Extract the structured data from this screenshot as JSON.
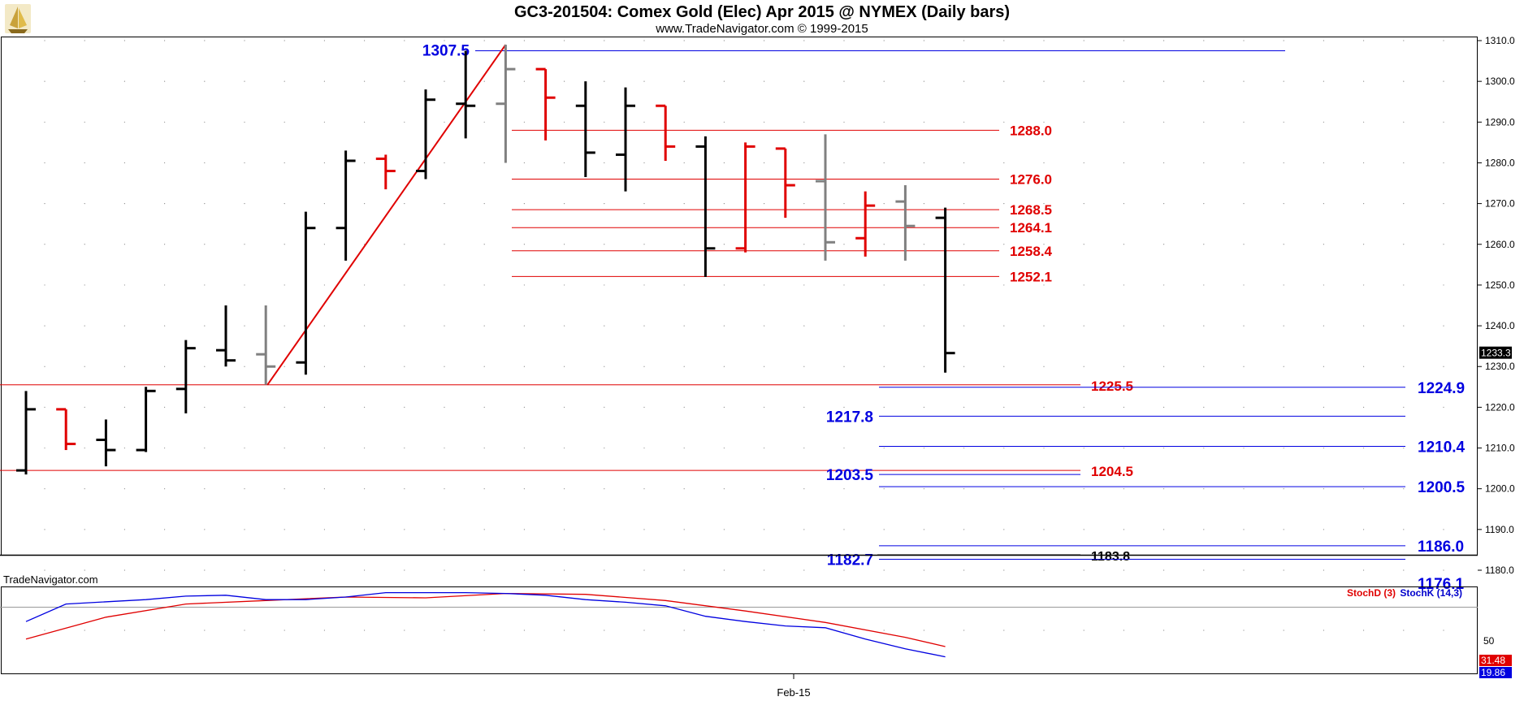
{
  "header": {
    "title": "GC3-201504:  Comex Gold (Elec) Apr 2015 @ NYMEX  (Daily bars)",
    "subtitle": "www.TradeNavigator.com © 1999-2015",
    "watermark": "TradeNavigator.com",
    "logo_icon": "sailing-ship-icon"
  },
  "colors": {
    "up": "#000000",
    "down": "#e00000",
    "neutral": "#808080",
    "fib_red": "#e00000",
    "fib_blue": "#0000e0",
    "stoch_d": "#e00000",
    "stoch_k": "#0000e0"
  },
  "chart_data": [
    {
      "type": "ohlc",
      "title": "GC3-201504:  Comex Gold (Elec) Apr 2015 @ NYMEX  (Daily bars)",
      "ylim": [
        1176,
        1311
      ],
      "y_ticks": [
        "1310.0",
        "1300.0",
        "1290.0",
        "1280.0",
        "1270.0",
        "1260.0",
        "1250.0",
        "1240.0",
        "1230.0",
        "1220.0",
        "1210.0",
        "1200.0",
        "1190.0",
        "1180.0"
      ],
      "x_ticks": [
        "Feb-15"
      ],
      "last_price_tag": "1233.3",
      "bars": [
        {
          "o": 1204.5,
          "h": 1224,
          "l": 1203.5,
          "c": 1219.5,
          "color": "up"
        },
        {
          "o": 1219.5,
          "h": 1219.5,
          "l": 1209.5,
          "c": 1211,
          "color": "down"
        },
        {
          "o": 1212,
          "h": 1217,
          "l": 1205.5,
          "c": 1209.5,
          "color": "up"
        },
        {
          "o": 1209.5,
          "h": 1225,
          "l": 1209,
          "c": 1224,
          "color": "up"
        },
        {
          "o": 1224.5,
          "h": 1236.5,
          "l": 1218.5,
          "c": 1234.5,
          "color": "up"
        },
        {
          "o": 1234,
          "h": 1245,
          "l": 1230,
          "c": 1231.5,
          "color": "up"
        },
        {
          "o": 1233,
          "h": 1245,
          "l": 1225.5,
          "c": 1230,
          "color": "neutral"
        },
        {
          "o": 1231,
          "h": 1268,
          "l": 1228,
          "c": 1264,
          "color": "up"
        },
        {
          "o": 1264,
          "h": 1283,
          "l": 1256,
          "c": 1280.5,
          "color": "up"
        },
        {
          "o": 1281,
          "h": 1282,
          "l": 1273.5,
          "c": 1278,
          "color": "down"
        },
        {
          "o": 1278,
          "h": 1298,
          "l": 1276,
          "c": 1295.5,
          "color": "up"
        },
        {
          "o": 1294.5,
          "h": 1307.5,
          "l": 1286,
          "c": 1294,
          "color": "up"
        },
        {
          "o": 1294.5,
          "h": 1309,
          "l": 1280,
          "c": 1303,
          "color": "neutral"
        },
        {
          "o": 1303,
          "h": 1303,
          "l": 1285.5,
          "c": 1296,
          "color": "down"
        },
        {
          "o": 1294,
          "h": 1300,
          "l": 1276.5,
          "c": 1282.5,
          "color": "up"
        },
        {
          "o": 1282,
          "h": 1298.5,
          "l": 1273,
          "c": 1294,
          "color": "up"
        },
        {
          "o": 1294,
          "h": 1294,
          "l": 1280.5,
          "c": 1284,
          "color": "down"
        },
        {
          "o": 1284,
          "h": 1286.5,
          "l": 1252,
          "c": 1259,
          "color": "up"
        },
        {
          "o": 1259,
          "h": 1285,
          "l": 1258,
          "c": 1284,
          "color": "down"
        },
        {
          "o": 1283.5,
          "h": 1283.5,
          "l": 1266.5,
          "c": 1274.5,
          "color": "down"
        },
        {
          "o": 1275.5,
          "h": 1287,
          "l": 1256,
          "c": 1260.5,
          "color": "neutral"
        },
        {
          "o": 1261.5,
          "h": 1273,
          "l": 1257,
          "c": 1269.5,
          "color": "down"
        },
        {
          "o": 1270.5,
          "h": 1274.5,
          "l": 1256,
          "c": 1264.5,
          "color": "neutral"
        },
        {
          "o": 1266.5,
          "h": 1269,
          "l": 1228.5,
          "c": 1233.3,
          "color": "up"
        }
      ],
      "trend_line": {
        "from_bar": 6,
        "from_price": 1225.5,
        "to_bar": 12,
        "to_price": 1309
      },
      "levels_right": [
        {
          "label": "1307.5",
          "price": 1307.5,
          "color": "blue"
        },
        {
          "label": "1288.0",
          "price": 1288.0,
          "color": "red"
        },
        {
          "label": "1276.0",
          "price": 1276.0,
          "color": "red"
        },
        {
          "label": "1268.5",
          "price": 1268.5,
          "color": "red"
        },
        {
          "label": "1264.1",
          "price": 1264.1,
          "color": "red"
        },
        {
          "label": "1258.4",
          "price": 1258.4,
          "color": "red"
        },
        {
          "label": "1252.1",
          "price": 1252.1,
          "color": "red"
        }
      ],
      "levels_lower": [
        {
          "label": "1225.5",
          "price": 1225.5,
          "color": "red"
        },
        {
          "label": "1224.9",
          "price": 1224.9,
          "color": "blue"
        },
        {
          "label": "1217.8",
          "price": 1217.8,
          "color": "blue"
        },
        {
          "label": "1210.4",
          "price": 1210.4,
          "color": "blue"
        },
        {
          "label": "1204.5",
          "price": 1204.5,
          "color": "red"
        },
        {
          "label": "1203.5",
          "price": 1203.5,
          "color": "blue"
        },
        {
          "label": "1200.5",
          "price": 1200.5,
          "color": "blue"
        },
        {
          "label": "1186.0",
          "price": 1186.0,
          "color": "blue"
        },
        {
          "label": "1183.8",
          "price": 1183.8,
          "color": "black"
        },
        {
          "label": "1182.7",
          "price": 1182.7,
          "color": "blue"
        },
        {
          "label": "1176.1",
          "price": 1176.1,
          "color": "blue"
        }
      ]
    },
    {
      "type": "line",
      "legend": [
        "StochD (3)",
        "StochK (14,3)"
      ],
      "ylim": [
        0,
        100
      ],
      "y_ticks": [
        "50"
      ],
      "tags": [
        "31.48",
        "19.86"
      ],
      "series": [
        {
          "name": "StochD (3)",
          "x": [
            0,
            2,
            4,
            6,
            8,
            10,
            12,
            14,
            16,
            18,
            20,
            22,
            23
          ],
          "values": [
            40,
            65,
            80,
            84,
            88,
            87,
            92,
            91,
            84,
            72,
            59,
            42,
            31.48
          ]
        },
        {
          "name": "StochK (14,3)",
          "x": [
            0,
            1,
            3,
            4,
            5,
            6,
            7,
            8,
            9,
            11,
            12,
            13,
            14,
            15,
            16,
            17,
            18,
            19,
            20,
            21,
            22,
            23
          ],
          "values": [
            60,
            80,
            85,
            89,
            90,
            85,
            85,
            88,
            93,
            93,
            92,
            90,
            85,
            82,
            78,
            66,
            60,
            55,
            53,
            40,
            29,
            19.86
          ]
        }
      ]
    }
  ]
}
